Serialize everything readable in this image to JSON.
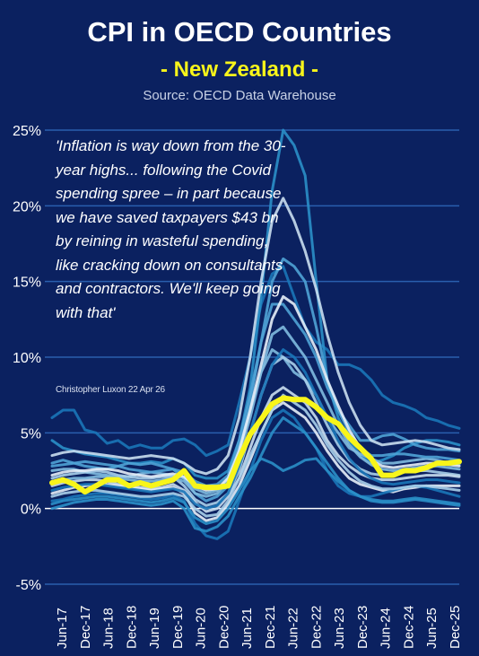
{
  "header": {
    "title": "CPI in OECD Countries",
    "subtitle": "- New Zealand -",
    "source": "Source: OECD Data Warehouse"
  },
  "quote": {
    "text": "'Inflation is way down from the 30-year highs... following the Covid spending spree – in part because we have saved taxpayers $43 bn by reining in wasteful spending, like cracking down on consultants and contractors. We'll keep going with that'",
    "attribution": "Christopher Luxon 22 Apr 26"
  },
  "chart_data": {
    "type": "line",
    "title": "CPI in OECD Countries",
    "subtitle": "- New Zealand -",
    "xlabel": "",
    "ylabel": "",
    "ylim": [
      -5,
      25
    ],
    "yticks": [
      "25%",
      "20%",
      "15%",
      "10%",
      "5%",
      "0%",
      "-5%"
    ],
    "ytick_values": [
      25,
      20,
      15,
      10,
      5,
      0,
      -5
    ],
    "x_tick_labels": [
      "Jun-17",
      "Dec-17",
      "Jun-18",
      "Dec-18",
      "Jun-19",
      "Dec-19",
      "Jun-20",
      "Dec-20",
      "Jun-21",
      "Dec-21",
      "Jun-22",
      "Dec-22",
      "Jun-23",
      "Dec-23",
      "Jun-24",
      "Dec-24",
      "Jun-25",
      "Dec-25"
    ],
    "grid": true,
    "colors": {
      "highlight": "#f8f51a",
      "background_series": [
        "#1976b8",
        "#2a8fc8",
        "#4fa3d6",
        "#7fbbe0",
        "#a9cfea",
        "#c9def0",
        "#e6eef8"
      ],
      "grid": "#2a5fae",
      "zero_line": "#ffffff",
      "background": "#0b2160"
    },
    "highlight_series": {
      "values": [
        1.7,
        1.9,
        1.6,
        1.1,
        1.5,
        1.9,
        1.9,
        1.5,
        1.7,
        1.5,
        1.7,
        1.9,
        2.5,
        1.5,
        1.4,
        1.4,
        1.5,
        3.3,
        4.9,
        5.9,
        6.9,
        7.3,
        7.2,
        7.2,
        6.7,
        6.0,
        5.6,
        4.7,
        4.0,
        3.3,
        2.2,
        2.2,
        2.5,
        2.5,
        2.7,
        3.0,
        3.0,
        3.1
      ]
    },
    "series": [
      {
        "values": [
          6.0,
          6.5,
          6.5,
          5.2,
          5.0,
          4.3,
          4.5,
          4.0,
          4.2,
          4.0,
          4.0,
          4.5,
          4.6,
          4.2,
          3.5,
          3.8,
          4.2,
          7.0,
          10.0,
          13.5,
          15.5,
          16.0,
          14.0,
          12.0,
          11.0,
          10.5,
          9.5,
          9.5,
          9.2,
          8.5,
          7.5,
          7.0,
          6.8,
          6.5,
          6.0,
          5.8,
          5.5,
          5.3
        ]
      },
      {
        "values": [
          4.5,
          4.0,
          3.8,
          3.6,
          3.5,
          3.4,
          3.2,
          3.0,
          3.0,
          3.1,
          3.0,
          3.3,
          3.0,
          2.2,
          2.0,
          2.0,
          2.5,
          4.5,
          8.0,
          14.0,
          21.0,
          25.0,
          24.0,
          22.0,
          15.0,
          8.5,
          6.0,
          4.5,
          3.5,
          3.0,
          3.2,
          3.5,
          4.0,
          4.3,
          4.5,
          4.5,
          4.4,
          4.2
        ]
      },
      {
        "values": [
          3.0,
          3.2,
          3.0,
          2.8,
          2.7,
          2.6,
          2.8,
          3.0,
          2.9,
          3.0,
          2.8,
          2.6,
          2.0,
          1.0,
          0.5,
          0.8,
          1.5,
          3.5,
          7.0,
          11.0,
          15.0,
          16.5,
          16.0,
          15.0,
          12.0,
          8.5,
          6.5,
          5.5,
          4.5,
          4.5,
          4.8,
          4.9,
          4.6,
          4.2,
          4.0,
          3.9,
          3.9,
          3.8
        ]
      },
      {
        "values": [
          2.5,
          2.6,
          2.6,
          2.4,
          2.3,
          2.2,
          2.1,
          2.1,
          2.3,
          2.4,
          2.3,
          2.2,
          2.0,
          1.3,
          1.0,
          1.2,
          2.0,
          4.0,
          6.5,
          9.0,
          10.5,
          10.0,
          9.0,
          8.5,
          7.5,
          6.0,
          5.0,
          4.0,
          3.6,
          3.3,
          3.0,
          3.0,
          3.1,
          3.2,
          3.3,
          3.2,
          3.0,
          2.9
        ]
      },
      {
        "values": [
          2.0,
          2.2,
          2.3,
          2.4,
          2.5,
          2.4,
          2.2,
          2.1,
          2.0,
          2.0,
          2.1,
          2.1,
          1.5,
          0.6,
          0.2,
          0.4,
          1.0,
          2.5,
          5.0,
          7.5,
          9.5,
          10.0,
          9.5,
          8.5,
          7.0,
          5.5,
          4.2,
          3.2,
          2.6,
          2.3,
          2.2,
          2.3,
          2.4,
          2.5,
          2.5,
          2.4,
          2.3,
          2.2
        ]
      },
      {
        "values": [
          1.5,
          1.7,
          1.8,
          1.9,
          1.9,
          1.8,
          1.6,
          1.5,
          1.4,
          1.3,
          1.4,
          1.6,
          1.2,
          0.4,
          -0.2,
          0.0,
          0.8,
          2.0,
          4.0,
          6.0,
          7.5,
          8.0,
          7.5,
          7.0,
          6.0,
          4.5,
          3.5,
          2.8,
          2.3,
          2.0,
          1.9,
          1.9,
          2.0,
          2.1,
          2.2,
          2.2,
          2.2,
          2.1
        ]
      },
      {
        "values": [
          1.0,
          1.2,
          1.4,
          1.5,
          1.6,
          1.6,
          1.5,
          1.4,
          1.3,
          1.2,
          1.3,
          1.4,
          1.0,
          -0.3,
          -0.8,
          -0.6,
          0.3,
          1.5,
          3.2,
          5.0,
          6.5,
          7.0,
          6.5,
          6.0,
          5.0,
          3.8,
          2.8,
          2.0,
          1.6,
          1.4,
          1.2,
          1.1,
          1.3,
          1.4,
          1.5,
          1.5,
          1.5,
          1.5
        ]
      },
      {
        "values": [
          0.5,
          0.6,
          0.8,
          0.9,
          1.0,
          1.0,
          0.9,
          0.8,
          0.7,
          0.6,
          0.7,
          0.9,
          0.5,
          -1.0,
          -1.8,
          -2.0,
          -1.5,
          0.5,
          2.5,
          4.5,
          6.0,
          6.5,
          6.0,
          5.0,
          4.0,
          2.5,
          1.5,
          1.0,
          0.8,
          0.8,
          1.0,
          1.2,
          1.4,
          1.5,
          1.4,
          1.2,
          1.0,
          0.8
        ]
      },
      {
        "values": [
          0.0,
          0.2,
          0.4,
          0.5,
          0.6,
          0.6,
          0.5,
          0.4,
          0.3,
          0.2,
          0.3,
          0.5,
          0.0,
          -1.3,
          -1.5,
          -1.2,
          -0.5,
          0.8,
          2.0,
          3.5,
          5.0,
          6.0,
          5.5,
          5.0,
          4.0,
          3.0,
          2.0,
          1.2,
          0.8,
          0.5,
          0.4,
          0.4,
          0.5,
          0.6,
          0.5,
          0.4,
          0.3,
          0.2
        ]
      },
      {
        "values": [
          2.8,
          2.9,
          3.0,
          3.1,
          3.0,
          2.9,
          2.8,
          2.6,
          2.5,
          2.4,
          2.5,
          2.6,
          2.4,
          1.8,
          1.5,
          1.6,
          2.2,
          4.5,
          7.5,
          11.0,
          13.5,
          13.5,
          12.5,
          11.5,
          10.0,
          8.0,
          6.5,
          5.0,
          4.0,
          3.5,
          3.5,
          3.6,
          3.6,
          3.5,
          3.4,
          3.4,
          3.3,
          3.2
        ]
      },
      {
        "values": [
          1.8,
          1.9,
          2.0,
          2.0,
          2.1,
          2.1,
          2.0,
          1.9,
          1.8,
          1.8,
          1.9,
          2.0,
          1.8,
          1.0,
          0.8,
          1.0,
          1.8,
          3.5,
          6.0,
          9.0,
          11.5,
          12.0,
          11.0,
          10.0,
          8.5,
          7.0,
          5.5,
          4.2,
          3.4,
          2.9,
          2.6,
          2.5,
          2.6,
          2.7,
          2.8,
          2.8,
          2.7,
          2.6
        ]
      },
      {
        "values": [
          0.8,
          1.0,
          1.1,
          1.2,
          1.2,
          1.1,
          1.0,
          0.9,
          0.8,
          0.8,
          0.9,
          1.0,
          0.8,
          0.0,
          -0.5,
          -0.4,
          0.5,
          2.0,
          3.5,
          5.0,
          6.5,
          7.5,
          7.0,
          6.5,
          5.5,
          4.2,
          3.2,
          2.4,
          1.8,
          1.5,
          1.3,
          1.3,
          1.4,
          1.5,
          1.5,
          1.4,
          1.3,
          1.2
        ]
      },
      {
        "values": [
          3.5,
          3.7,
          3.8,
          3.7,
          3.6,
          3.5,
          3.4,
          3.3,
          3.4,
          3.5,
          3.4,
          3.3,
          3.0,
          2.5,
          2.3,
          2.6,
          3.5,
          6.0,
          10.0,
          15.0,
          19.0,
          20.5,
          19.0,
          17.0,
          14.5,
          11.5,
          9.0,
          7.0,
          5.5,
          4.5,
          4.2,
          4.3,
          4.4,
          4.5,
          4.4,
          4.2,
          4.0,
          3.9
        ]
      },
      {
        "values": [
          2.2,
          2.4,
          2.5,
          2.5,
          2.6,
          2.6,
          2.5,
          2.3,
          2.2,
          2.1,
          2.2,
          2.3,
          2.1,
          1.5,
          1.2,
          1.3,
          2.0,
          3.8,
          6.5,
          9.5,
          12.5,
          14.0,
          13.5,
          12.0,
          10.5,
          8.5,
          6.8,
          5.2,
          4.0,
          3.2,
          2.8,
          2.7,
          2.8,
          2.9,
          3.0,
          3.0,
          2.9,
          2.8
        ]
      },
      {
        "values": [
          1.2,
          1.4,
          1.5,
          1.6,
          1.6,
          1.5,
          1.4,
          1.3,
          1.2,
          1.1,
          1.2,
          1.3,
          1.1,
          0.3,
          0.0,
          0.2,
          1.0,
          2.8,
          5.0,
          7.5,
          9.5,
          10.5,
          10.0,
          9.0,
          7.5,
          6.0,
          4.5,
          3.3,
          2.5,
          2.0,
          1.7,
          1.6,
          1.7,
          1.8,
          1.9,
          1.9,
          1.8,
          1.7
        ]
      },
      {
        "values": [
          0.3,
          0.5,
          0.6,
          0.7,
          0.8,
          0.8,
          0.7,
          0.6,
          0.5,
          0.4,
          0.5,
          0.7,
          0.4,
          -0.6,
          -1.0,
          -0.8,
          0.0,
          1.2,
          2.5,
          3.3,
          3.0,
          2.5,
          2.8,
          3.2,
          3.3,
          2.5,
          1.8,
          1.2,
          0.8,
          0.6,
          0.5,
          0.5,
          0.6,
          0.7,
          0.6,
          0.5,
          0.4,
          0.3
        ]
      }
    ]
  }
}
